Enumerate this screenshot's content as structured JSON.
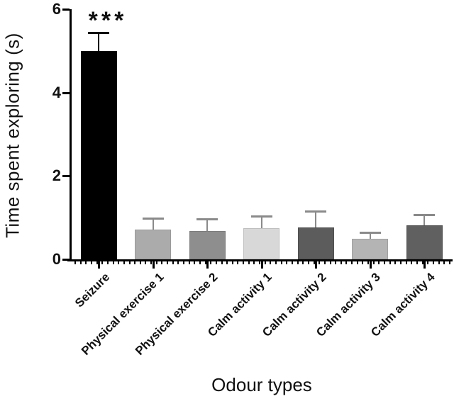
{
  "figure": {
    "significance_marker": "***"
  },
  "chart_data": {
    "type": "bar",
    "title": "",
    "xlabel": "Odour types",
    "ylabel": "Time spent exploring (s)",
    "categories": [
      "Seizure",
      "Physical exercise 1",
      "Physical exercise 2",
      "Calm activity 1",
      "Calm activity 2",
      "Calm activity 3",
      "Calm activity 4"
    ],
    "values": [
      5.0,
      0.72,
      0.68,
      0.75,
      0.76,
      0.49,
      0.82
    ],
    "errors_upper": [
      0.45,
      0.28,
      0.3,
      0.3,
      0.42,
      0.17,
      0.26
    ],
    "bar_colors": [
      "#000000",
      "#ababab",
      "#8e8e8e",
      "#d8d8d8",
      "#5c5c5c",
      "#b4b4b4",
      "#606060"
    ],
    "bar_border_colors": [
      "#000000",
      "#9a9a9a",
      "#7d7d7d",
      "#bfbfbf",
      "#4f4f4f",
      "#a0a0a0",
      "#515151"
    ],
    "error_bar_colors": [
      "#000000",
      "#8a8a8a",
      "#8a8a8a",
      "#8a8a8a",
      "#8a8a8a",
      "#8a8a8a",
      "#8a8a8a"
    ],
    "ylim": [
      0,
      6
    ],
    "yticks": [
      0,
      2,
      4,
      6
    ],
    "grid": false,
    "legend": null,
    "annotations": [
      {
        "text": "***",
        "category_index": 0,
        "meaning": "significance marker above Seizure bar"
      }
    ]
  }
}
